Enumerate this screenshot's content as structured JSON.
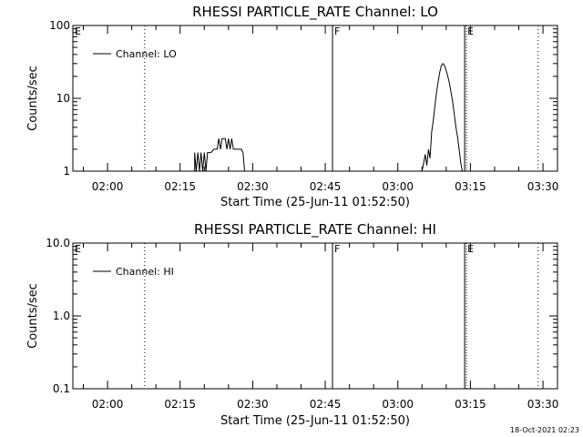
{
  "footer": "18-Oct-2021 02:23",
  "chart_data": [
    {
      "type": "line",
      "title": "RHESSI PARTICLE_RATE Channel: LO",
      "xlabel": "Start Time (25-Jun-11 01:52:50)",
      "ylabel": "Counts/sec",
      "yscale": "log",
      "ylim": [
        1,
        100
      ],
      "xlim": [
        "01:52:50",
        "03:33:00"
      ],
      "x_ticks": [
        "02:00",
        "02:15",
        "02:30",
        "02:45",
        "03:00",
        "03:15",
        "03:30"
      ],
      "y_ticks": [
        "1",
        "10",
        "100"
      ],
      "legend": "top-left",
      "grid": false,
      "series": [
        {
          "name": "Channel: LO",
          "points": [
            [
              "02:18:00",
              1
            ],
            [
              "02:18:00",
              1.8
            ],
            [
              "02:18:20",
              1
            ],
            [
              "02:18:40",
              1.8
            ],
            [
              "02:19:00",
              1
            ],
            [
              "02:19:20",
              1.8
            ],
            [
              "02:19:40",
              1
            ],
            [
              "02:20:00",
              1.8
            ],
            [
              "02:20:20",
              1
            ],
            [
              "02:20:40",
              1.8
            ],
            [
              "02:21:20",
              1.8
            ],
            [
              "02:22:00",
              2.0
            ],
            [
              "02:22:40",
              2.0
            ],
            [
              "02:23:00",
              2.8
            ],
            [
              "02:23:20",
              2.0
            ],
            [
              "02:23:40",
              2.8
            ],
            [
              "02:24:20",
              2.8
            ],
            [
              "02:24:40",
              2.0
            ],
            [
              "02:25:00",
              2.8
            ],
            [
              "02:25:20",
              2.0
            ],
            [
              "02:25:40",
              2.8
            ],
            [
              "02:26:00",
              2.0
            ],
            [
              "02:27:40",
              2.0
            ],
            [
              "02:28:00",
              1.8
            ],
            [
              "02:28:20",
              1.0
            ],
            [
              "03:05:00",
              1.0
            ],
            [
              "03:05:20",
              1.3
            ],
            [
              "03:05:40",
              1.7
            ],
            [
              "03:06:00",
              1.2
            ],
            [
              "03:06:20",
              2.0
            ],
            [
              "03:06:40",
              1.5
            ],
            [
              "03:07:00",
              3.5
            ],
            [
              "03:07:20",
              5.0
            ],
            [
              "03:07:40",
              8.0
            ],
            [
              "03:08:00",
              12
            ],
            [
              "03:08:20",
              17
            ],
            [
              "03:08:40",
              23
            ],
            [
              "03:09:00",
              28
            ],
            [
              "03:09:20",
              30
            ],
            [
              "03:09:40",
              28
            ],
            [
              "03:10:00",
              24
            ],
            [
              "03:10:20",
              20
            ],
            [
              "03:10:40",
              16
            ],
            [
              "03:11:00",
              12
            ],
            [
              "03:11:20",
              9
            ],
            [
              "03:11:40",
              6
            ],
            [
              "03:12:00",
              4
            ],
            [
              "03:12:20",
              3
            ],
            [
              "03:12:40",
              2
            ],
            [
              "03:13:00",
              1.3
            ],
            [
              "03:13:20",
              1.0
            ]
          ]
        }
      ],
      "markers": [
        {
          "label": "E",
          "time": "01:52:50",
          "style": "none"
        },
        {
          "label": "",
          "time": "02:07:40",
          "style": "dotted"
        },
        {
          "label": "F",
          "time": "02:46:30",
          "style": "solid"
        },
        {
          "label": "E",
          "time": "03:14:00",
          "style": "solid-dotted"
        },
        {
          "label": "",
          "time": "03:29:00",
          "style": "dotted"
        }
      ]
    },
    {
      "type": "line",
      "title": "RHESSI PARTICLE_RATE Channel: HI",
      "xlabel": "Start Time (25-Jun-11 01:52:50)",
      "ylabel": "Counts/sec",
      "yscale": "log",
      "ylim": [
        0.1,
        10
      ],
      "xlim": [
        "01:52:50",
        "03:33:00"
      ],
      "x_ticks": [
        "02:00",
        "02:15",
        "02:30",
        "02:45",
        "03:00",
        "03:15",
        "03:30"
      ],
      "y_ticks": [
        "0.1",
        "1.0",
        "10.0"
      ],
      "legend": "top-left",
      "grid": false,
      "series": [
        {
          "name": "Channel: HI",
          "points": []
        }
      ],
      "markers": [
        {
          "label": "E",
          "time": "01:52:50",
          "style": "none"
        },
        {
          "label": "",
          "time": "02:07:40",
          "style": "dotted"
        },
        {
          "label": "F",
          "time": "02:46:30",
          "style": "solid"
        },
        {
          "label": "E",
          "time": "03:14:00",
          "style": "solid-dotted"
        },
        {
          "label": "",
          "time": "03:29:00",
          "style": "dotted"
        }
      ]
    }
  ]
}
